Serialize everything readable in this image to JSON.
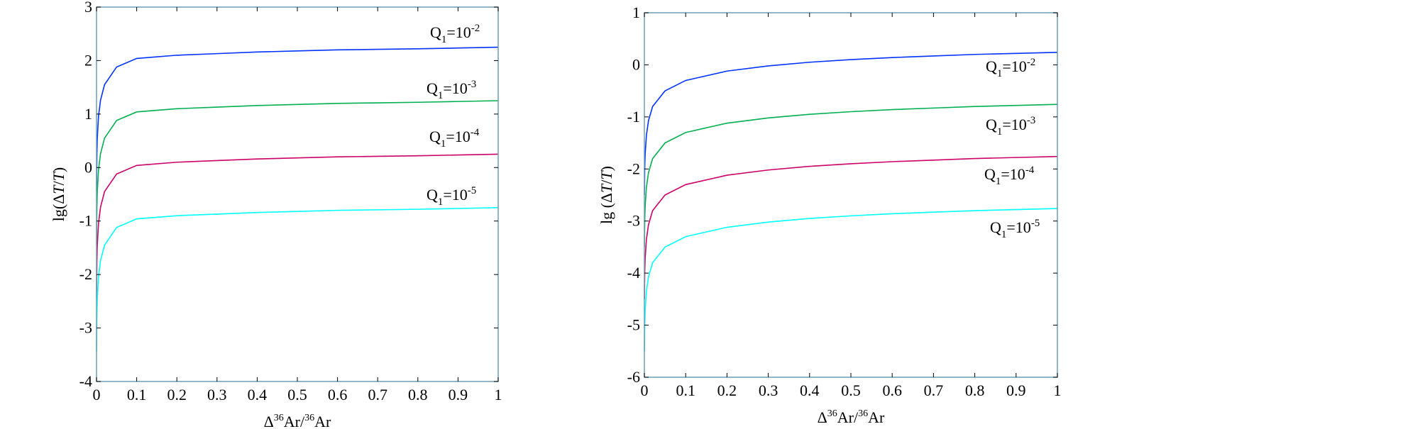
{
  "chart_data": [
    {
      "type": "line",
      "xlabel": {
        "prefix": "Δ",
        "sup1": "36",
        "mid": "Ar/",
        "sup2": "36",
        "suffix": "Ar"
      },
      "ylabel": {
        "prefix": "lg(Δ",
        "italic1": "T",
        "slash": "/",
        "italic2": "T",
        "suffix": ")"
      },
      "xlim": [
        0,
        1
      ],
      "ylim": [
        -4,
        3
      ],
      "xticks": [
        0,
        0.1,
        0.2,
        0.3,
        0.4,
        0.5,
        0.6,
        0.7,
        0.8,
        0.9,
        1
      ],
      "xtick_labels": [
        "0",
        "0.1",
        "0.2",
        "0.3",
        "0.4",
        "0.5",
        "0.6",
        "0.7",
        "0.8",
        "0.9",
        "1"
      ],
      "yticks": [
        -4,
        -3,
        -2,
        -1,
        0,
        1,
        2,
        3
      ],
      "ytick_labels": [
        "-4",
        "-3",
        "-2",
        "-1",
        "0",
        "1",
        "2",
        "3"
      ],
      "grid": false,
      "legend": "none",
      "x": [
        0.0002,
        0.0005,
        0.001,
        0.002,
        0.005,
        0.01,
        0.02,
        0.05,
        0.1,
        0.2,
        0.3,
        0.4,
        0.5,
        0.6,
        0.7,
        0.8,
        0.9,
        1.0
      ],
      "series": [
        {
          "name": "Q1=10-2",
          "label_base": "Q",
          "label_sub": "1",
          "label_eq": "=10",
          "label_exp": "-2",
          "color": "#0033ff",
          "values": [
            -0.44,
            -0.04,
            0.26,
            0.56,
            0.96,
            1.26,
            1.55,
            1.88,
            2.04,
            2.1,
            2.13,
            2.16,
            2.18,
            2.2,
            2.21,
            2.22,
            2.235,
            2.25
          ]
        },
        {
          "name": "Q1=10-3",
          "label_base": "Q",
          "label_sub": "1",
          "label_eq": "=10",
          "label_exp": "-3",
          "color": "#00b050",
          "values": [
            -1.44,
            -1.04,
            -0.74,
            -0.44,
            -0.04,
            0.26,
            0.55,
            0.88,
            1.04,
            1.1,
            1.13,
            1.16,
            1.18,
            1.2,
            1.21,
            1.22,
            1.235,
            1.25
          ]
        },
        {
          "name": "Q1=10-4",
          "label_base": "Q",
          "label_sub": "1",
          "label_eq": "=10",
          "label_exp": "-4",
          "color": "#cc0066",
          "values": [
            -2.44,
            -2.04,
            -1.74,
            -1.44,
            -1.04,
            -0.74,
            -0.45,
            -0.12,
            0.04,
            0.1,
            0.13,
            0.16,
            0.18,
            0.2,
            0.21,
            0.22,
            0.235,
            0.25
          ]
        },
        {
          "name": "Q1=10-5",
          "label_base": "Q",
          "label_sub": "1",
          "label_eq": "=10",
          "label_exp": "-5",
          "color": "#00ffff",
          "values": [
            -3.44,
            -3.04,
            -2.74,
            -2.44,
            -2.04,
            -1.74,
            -1.45,
            -1.12,
            -0.96,
            -0.9,
            -0.87,
            -0.84,
            -0.82,
            -0.8,
            -0.79,
            -0.78,
            -0.765,
            -0.75
          ]
        }
      ]
    },
    {
      "type": "line",
      "xlabel": {
        "prefix": "Δ",
        "sup1": "36",
        "mid": "Ar/",
        "sup2": "36",
        "suffix": "Ar"
      },
      "ylabel": {
        "prefix": "lg (Δ",
        "italic1": "T",
        "slash": "/",
        "italic2": "T",
        "suffix": ")"
      },
      "xlim": [
        0,
        1
      ],
      "ylim": [
        -6,
        1
      ],
      "xticks": [
        0,
        0.1,
        0.2,
        0.3,
        0.4,
        0.5,
        0.6,
        0.7,
        0.8,
        0.9,
        1
      ],
      "xtick_labels": [
        "0",
        "0.1",
        "0.2",
        "0.3",
        "0.4",
        "0.5",
        "0.6",
        "0.7",
        "0.8",
        "0.9",
        "1"
      ],
      "yticks": [
        -6,
        -5,
        -4,
        -3,
        -2,
        -1,
        0,
        1
      ],
      "ytick_labels": [
        "-6",
        "-5",
        "-4",
        "-3",
        "-2",
        "-1",
        "0",
        "1"
      ],
      "grid": false,
      "legend": "none",
      "x": [
        0.0002,
        0.0005,
        0.001,
        0.002,
        0.005,
        0.01,
        0.02,
        0.05,
        0.1,
        0.2,
        0.3,
        0.4,
        0.5,
        0.6,
        0.7,
        0.8,
        0.9,
        1.0
      ],
      "series": [
        {
          "name": "Q1=10-2",
          "label_base": "Q",
          "label_sub": "1",
          "label_eq": "=10",
          "label_exp": "-2",
          "color": "#0033ff",
          "values": [
            -2.5,
            -2.2,
            -1.95,
            -1.7,
            -1.35,
            -1.07,
            -0.8,
            -0.5,
            -0.3,
            -0.12,
            -0.02,
            0.05,
            0.1,
            0.14,
            0.17,
            0.2,
            0.22,
            0.24
          ]
        },
        {
          "name": "Q1=10-3",
          "label_base": "Q",
          "label_sub": "1",
          "label_eq": "=10",
          "label_exp": "-3",
          "color": "#00b050",
          "values": [
            -3.5,
            -3.2,
            -2.95,
            -2.7,
            -2.35,
            -2.07,
            -1.8,
            -1.5,
            -1.3,
            -1.12,
            -1.02,
            -0.95,
            -0.9,
            -0.86,
            -0.83,
            -0.8,
            -0.78,
            -0.76
          ]
        },
        {
          "name": "Q1=10-4",
          "label_base": "Q",
          "label_sub": "1",
          "label_eq": "=10",
          "label_exp": "-4",
          "color": "#cc0066",
          "values": [
            -4.5,
            -4.2,
            -3.95,
            -3.7,
            -3.35,
            -3.07,
            -2.8,
            -2.5,
            -2.3,
            -2.12,
            -2.02,
            -1.95,
            -1.9,
            -1.86,
            -1.83,
            -1.8,
            -1.78,
            -1.76
          ]
        },
        {
          "name": "Q1=10-5",
          "label_base": "Q",
          "label_sub": "1",
          "label_eq": "=10",
          "label_exp": "-5",
          "color": "#00ffff",
          "values": [
            -5.5,
            -5.2,
            -4.95,
            -4.7,
            -4.35,
            -4.07,
            -3.8,
            -3.5,
            -3.3,
            -3.12,
            -3.02,
            -2.95,
            -2.9,
            -2.86,
            -2.83,
            -2.8,
            -2.78,
            -2.76
          ]
        }
      ]
    }
  ]
}
